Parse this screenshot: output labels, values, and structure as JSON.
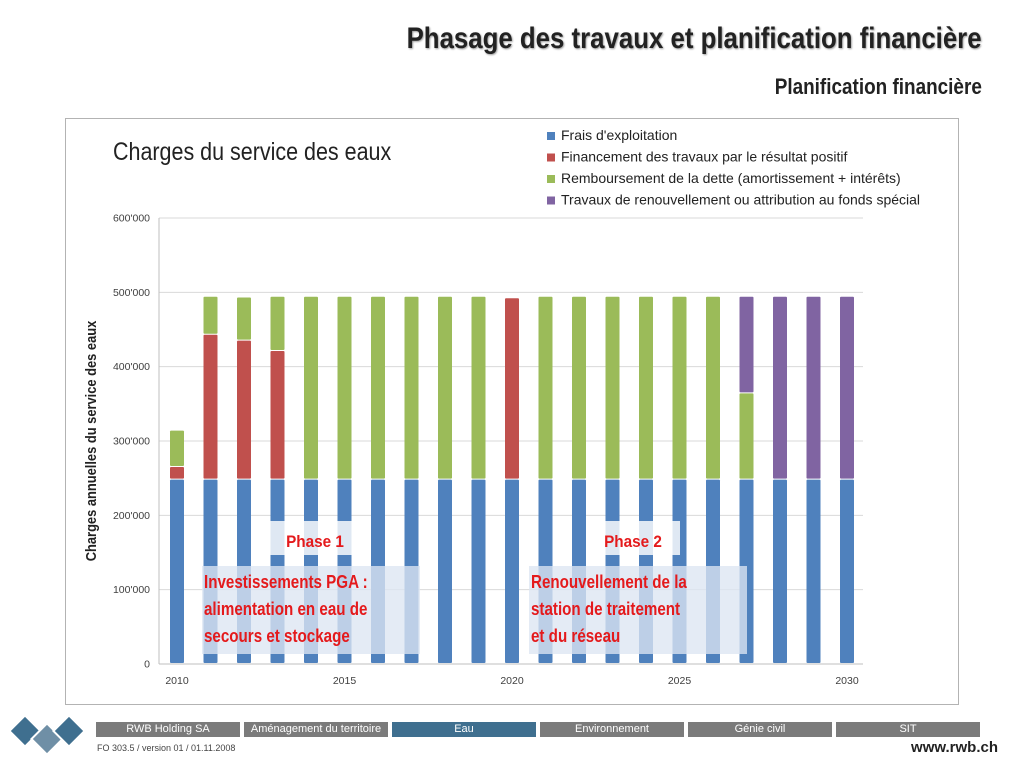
{
  "header": {
    "title": "Phasage des travaux et planification financière",
    "subtitle": "Planification financière"
  },
  "chart_data": {
    "type": "bar",
    "stacked": true,
    "title": "Charges du service des eaux",
    "xlabel": "",
    "ylabel": "Charges annuelles du service des eaux",
    "ylim": [
      0,
      600000
    ],
    "y_ticks": [
      "0",
      "100'000",
      "200'000",
      "300'000",
      "400'000",
      "500'000",
      "600'000"
    ],
    "y_tick_values": [
      0,
      100000,
      200000,
      300000,
      400000,
      500000,
      600000
    ],
    "x_ticks": [
      "2010",
      "2015",
      "2020",
      "2025",
      "2030"
    ],
    "x_tick_values": [
      2010,
      2015,
      2020,
      2025,
      2030
    ],
    "categories": [
      2010,
      2011,
      2012,
      2013,
      2014,
      2015,
      2016,
      2017,
      2018,
      2019,
      2020,
      2021,
      2022,
      2023,
      2024,
      2025,
      2026,
      2027,
      2028,
      2029,
      2030
    ],
    "grid": "horizontal",
    "legend_position": "top-right",
    "series": [
      {
        "name": "Frais d'exploitation",
        "color": "#4f81bd",
        "values": [
          248000,
          248000,
          248000,
          248000,
          248000,
          248000,
          248000,
          248000,
          248000,
          248000,
          248000,
          248000,
          248000,
          248000,
          248000,
          248000,
          248000,
          248000,
          248000,
          248000,
          248000
        ]
      },
      {
        "name": "Financement des travaux par le résultat positif",
        "color": "#c0504d",
        "values": [
          17000,
          195000,
          187000,
          173000,
          0,
          0,
          0,
          0,
          0,
          0,
          244000,
          0,
          0,
          0,
          0,
          0,
          0,
          0,
          0,
          0,
          0
        ]
      },
      {
        "name": "Remboursement de la dette (amortissement + intérêts)",
        "color": "#9bbb59",
        "values": [
          49000,
          51000,
          58000,
          73000,
          246000,
          246000,
          246000,
          246000,
          246000,
          246000,
          0,
          246000,
          246000,
          246000,
          246000,
          246000,
          246000,
          116000,
          0,
          0,
          0
        ]
      },
      {
        "name": "Travaux de renouvellement ou attribution au fonds spécial",
        "color": "#8064a2",
        "values": [
          0,
          0,
          0,
          0,
          0,
          0,
          0,
          0,
          0,
          0,
          0,
          0,
          0,
          0,
          0,
          0,
          0,
          130000,
          246000,
          246000,
          246000
        ]
      }
    ],
    "annotations": [
      {
        "label": "Phase 1",
        "text": [
          "Investissements PGA :",
          "alimentation en eau de",
          "secours et stockage"
        ]
      },
      {
        "label": "Phase 2",
        "text": [
          "Renouvellement de la",
          "station de traitement",
          "et du réseau"
        ]
      }
    ]
  },
  "footer": {
    "tabs": [
      {
        "label": "RWB Holding SA",
        "active": false
      },
      {
        "label": "Aménagement du territoire",
        "active": false
      },
      {
        "label": "Eau",
        "active": true
      },
      {
        "label": "Environnement",
        "active": false
      },
      {
        "label": "Génie civil",
        "active": false
      },
      {
        "label": "SIT",
        "active": false
      }
    ],
    "version": "FO 303.5 / version 01 / 01.11.2008",
    "website": "www.rwb.ch"
  }
}
